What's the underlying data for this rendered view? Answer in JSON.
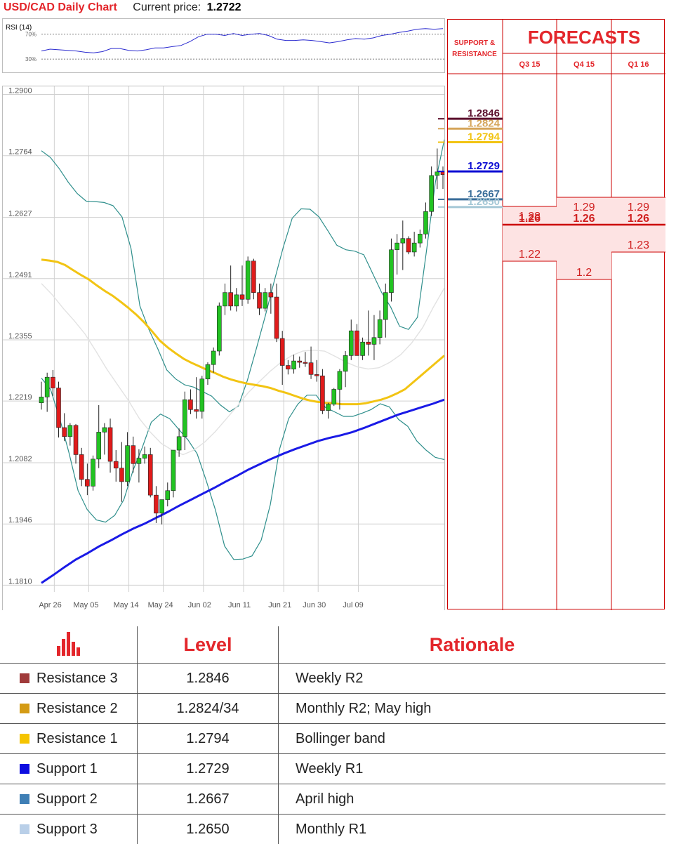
{
  "header": {
    "pair": "USD/CAD Daily Chart",
    "current_label": "Current price:",
    "current_value": "1.2722"
  },
  "rsi": {
    "title": "RSI (14)",
    "levels": [
      "70%",
      "30%"
    ],
    "values": [
      43,
      46,
      45,
      44,
      43,
      41,
      40,
      42,
      47,
      47,
      44,
      43,
      45,
      48,
      48,
      50,
      52,
      58,
      66,
      70,
      70,
      68,
      71,
      68,
      70,
      71,
      68,
      62,
      60,
      60,
      61,
      60,
      58,
      56,
      58,
      61,
      63,
      62,
      64,
      68,
      70,
      73,
      75,
      78,
      79,
      78,
      79
    ]
  },
  "chart_data": [
    {
      "type": "candlestick",
      "title": "USD/CAD Daily Chart",
      "y_ticks": [
        "1.2900",
        "1.2764",
        "1.2627",
        "1.2491",
        "1.2355",
        "1.2219",
        "1.2082",
        "1.1946",
        "1.1810"
      ],
      "ylim": [
        1.1795,
        1.2918
      ],
      "x_ticks": [
        {
          "label": "Apr 26",
          "index": 2
        },
        {
          "label": "May 05",
          "index": 8
        },
        {
          "label": "May 14",
          "index": 15
        },
        {
          "label": "May 24",
          "index": 21
        },
        {
          "label": "Jun 02",
          "index": 28
        },
        {
          "label": "Jun 11",
          "index": 35
        },
        {
          "label": "Jun 21",
          "index": 42
        },
        {
          "label": "Jun 30",
          "index": 48
        },
        {
          "label": "Jul 09",
          "index": 55
        }
      ],
      "ohlc": [
        [
          1.2215,
          1.2262,
          1.22,
          1.2228
        ],
        [
          1.2228,
          1.2282,
          1.2195,
          1.2272
        ],
        [
          1.2272,
          1.2288,
          1.223,
          1.2248
        ],
        [
          1.2248,
          1.2262,
          1.2138,
          1.216
        ],
        [
          1.216,
          1.2192,
          1.213,
          1.214
        ],
        [
          1.214,
          1.217,
          1.212,
          1.2165
        ],
        [
          1.2165,
          1.2168,
          1.208,
          1.21
        ],
        [
          1.21,
          1.2115,
          1.203,
          1.2045
        ],
        [
          1.2045,
          1.208,
          1.201,
          1.203
        ],
        [
          1.203,
          1.2098,
          1.202,
          1.209
        ],
        [
          1.209,
          1.221,
          1.207,
          1.215
        ],
        [
          1.215,
          1.217,
          1.21,
          1.216
        ],
        [
          1.216,
          1.218,
          1.206,
          1.2085
        ],
        [
          1.2085,
          1.211,
          1.204,
          1.207
        ],
        [
          1.207,
          1.2128,
          1.1995,
          1.204
        ],
        [
          1.204,
          1.215,
          1.203,
          1.212
        ],
        [
          1.212,
          1.214,
          1.206,
          1.208
        ],
        [
          1.208,
          1.2112,
          1.2038,
          1.2092
        ],
        [
          1.2092,
          1.2118,
          1.208,
          1.21
        ],
        [
          1.21,
          1.2115,
          1.2005,
          1.201
        ],
        [
          1.201,
          1.203,
          1.1948,
          1.197
        ],
        [
          1.197,
          1.2,
          1.1945,
          1.2
        ],
        [
          1.2,
          1.2038,
          1.1985,
          1.202
        ],
        [
          1.202,
          1.211,
          1.2005,
          1.211
        ],
        [
          1.211,
          1.2158,
          1.2095,
          1.214
        ],
        [
          1.214,
          1.224,
          1.211,
          1.2222
        ],
        [
          1.2222,
          1.2245,
          1.219,
          1.22
        ],
        [
          1.22,
          1.2272,
          1.218,
          1.2196
        ],
        [
          1.2196,
          1.2275,
          1.218,
          1.2268
        ],
        [
          1.2268,
          1.2305,
          1.2255,
          1.23
        ],
        [
          1.23,
          1.2338,
          1.2282,
          1.233
        ],
        [
          1.233,
          1.2438,
          1.232,
          1.243
        ],
        [
          1.243,
          1.248,
          1.241,
          1.246
        ],
        [
          1.246,
          1.252,
          1.242,
          1.243
        ],
        [
          1.243,
          1.247,
          1.2418,
          1.2455
        ],
        [
          1.2455,
          1.252,
          1.243,
          1.2445
        ],
        [
          1.2445,
          1.254,
          1.2435,
          1.253
        ],
        [
          1.253,
          1.2535,
          1.2445,
          1.246
        ],
        [
          1.246,
          1.248,
          1.241,
          1.2425
        ],
        [
          1.2425,
          1.247,
          1.2418,
          1.246
        ],
        [
          1.246,
          1.248,
          1.2413,
          1.245
        ],
        [
          1.245,
          1.248,
          1.235,
          1.2358
        ],
        [
          1.2358,
          1.2375,
          1.2255,
          1.2298
        ],
        [
          1.2298,
          1.231,
          1.2278,
          1.229
        ],
        [
          1.229,
          1.2322,
          1.228,
          1.2308
        ],
        [
          1.2308,
          1.2318,
          1.2293,
          1.2305
        ],
        [
          1.2305,
          1.2328,
          1.2295,
          1.2304
        ],
        [
          1.2304,
          1.234,
          1.2268,
          1.2278
        ],
        [
          1.2278,
          1.231,
          1.2262,
          1.2275
        ],
        [
          1.2275,
          1.229,
          1.219,
          1.2198
        ],
        [
          1.2198,
          1.2215,
          1.218,
          1.2212
        ],
        [
          1.2212,
          1.2248,
          1.2208,
          1.2245
        ],
        [
          1.2245,
          1.229,
          1.22,
          1.2285
        ],
        [
          1.2285,
          1.233,
          1.225,
          1.232
        ],
        [
          1.232,
          1.24,
          1.231,
          1.2375
        ],
        [
          1.2375,
          1.239,
          1.233,
          1.232
        ],
        [
          1.232,
          1.236,
          1.231,
          1.235
        ],
        [
          1.235,
          1.242,
          1.232,
          1.2345
        ],
        [
          1.2345,
          1.241,
          1.231,
          1.236
        ],
        [
          1.236,
          1.242,
          1.2345,
          1.24
        ],
        [
          1.24,
          1.248,
          1.236,
          1.246
        ],
        [
          1.246,
          1.258,
          1.244,
          1.2555
        ],
        [
          1.2555,
          1.259,
          1.25,
          1.257
        ],
        [
          1.257,
          1.262,
          1.251,
          1.258
        ],
        [
          1.258,
          1.2585,
          1.2545,
          1.255
        ],
        [
          1.255,
          1.2595,
          1.254,
          1.257
        ],
        [
          1.257,
          1.26,
          1.256,
          1.259
        ],
        [
          1.259,
          1.266,
          1.258,
          1.264
        ],
        [
          1.264,
          1.274,
          1.263,
          1.272
        ],
        [
          1.272,
          1.278,
          1.269,
          1.2728
        ],
        [
          1.2728,
          1.274,
          1.269,
          1.2722
        ]
      ],
      "ma_yellow": [
        1.2533,
        1.2531,
        1.2528,
        1.2521,
        1.251,
        1.2499,
        1.2489,
        1.2476,
        1.2464,
        1.2453,
        1.244,
        1.2426,
        1.2411,
        1.2394,
        1.2374,
        1.2353,
        1.2338,
        1.2325,
        1.2313,
        1.2304,
        1.2296,
        1.2288,
        1.2281,
        1.2273,
        1.2267,
        1.2262,
        1.2258,
        1.2255,
        1.2252,
        1.2248,
        1.2242,
        1.2237,
        1.2231,
        1.2225,
        1.222,
        1.2217,
        1.2215,
        1.2214,
        1.2212,
        1.2212,
        1.2212,
        1.2214,
        1.2218,
        1.2222,
        1.2228,
        1.2236,
        1.2245,
        1.226,
        1.2275,
        1.229,
        1.2305,
        1.232
      ],
      "ma_blue": [
        1.1815,
        1.1832,
        1.185,
        1.1867,
        1.1881,
        1.1896,
        1.1909,
        1.1923,
        1.1936,
        1.1947,
        1.196,
        1.1973,
        1.1987,
        1.2,
        1.2013,
        1.2026,
        1.204,
        1.2053,
        1.2067,
        1.2079,
        1.2091,
        1.2102,
        1.2112,
        1.2121,
        1.213,
        1.2137,
        1.2143,
        1.215,
        1.2159,
        1.2169,
        1.2179,
        1.2189,
        1.2197,
        1.2205,
        1.2213,
        1.2222
      ],
      "boll_upper": [
        1.2775,
        1.276,
        1.2735,
        1.2705,
        1.268,
        1.2663,
        1.2662,
        1.266,
        1.2653,
        1.2628,
        1.2558,
        1.243,
        1.2378,
        1.2335,
        1.2288,
        1.2268,
        1.2255,
        1.225,
        1.224,
        1.223,
        1.221,
        1.2195,
        1.2208,
        1.2265,
        1.2335,
        1.2408,
        1.2485,
        1.256,
        1.2625,
        1.2646,
        1.2645,
        1.2628,
        1.2597,
        1.2565,
        1.2555,
        1.2552,
        1.2544,
        1.2502,
        1.246,
        1.2428,
        1.2385,
        1.2378,
        1.2405,
        1.2552,
        1.2705,
        1.28
      ],
      "boll_lower": [
        1.227,
        1.2245,
        1.218,
        1.2105,
        1.202,
        1.1978,
        1.1955,
        1.195,
        1.1965,
        1.2,
        1.2065,
        1.2115,
        1.2172,
        1.219,
        1.218,
        1.2156,
        1.2133,
        1.2102,
        1.2042,
        1.1977,
        1.1897,
        1.1867,
        1.1868,
        1.1875,
        1.191,
        1.1989,
        1.2112,
        1.218,
        1.2212,
        1.2232,
        1.2232,
        1.2205,
        1.2195,
        1.2185,
        1.2185,
        1.2192,
        1.22,
        1.2213,
        1.2206,
        1.2178,
        1.2163,
        1.213,
        1.211,
        1.2094,
        1.2089
      ],
      "boll_mid": [
        1.248,
        1.2455,
        1.2425,
        1.2398,
        1.2368,
        1.233,
        1.229,
        1.2255,
        1.222,
        1.218,
        1.215,
        1.2125,
        1.211,
        1.21,
        1.211,
        1.2128,
        1.2152,
        1.218,
        1.2208,
        1.2238,
        1.2262,
        1.2285,
        1.2305,
        1.232,
        1.233,
        1.2332,
        1.233,
        1.2318,
        1.2305,
        1.2295,
        1.229,
        1.2293,
        1.2305,
        1.2322,
        1.2348,
        1.2382,
        1.2428,
        1.247
      ]
    },
    {
      "type": "step",
      "title": "FORECASTS",
      "series": [
        {
          "name": "Q3 15",
          "values": [
            1.28,
            1.26,
            1.22
          ]
        },
        {
          "name": "Q4 15",
          "values": [
            1.29,
            1.26,
            1.2
          ]
        },
        {
          "name": "Q1 16",
          "values": [
            1.29,
            1.26,
            1.23
          ]
        }
      ]
    }
  ],
  "levels": [
    {
      "label": "1.2846",
      "color": "#5b0f2c",
      "price": 1.2846
    },
    {
      "label": "1.2824",
      "color": "#d5a55a",
      "price": 1.2824
    },
    {
      "label": "1.2794",
      "color": "#f2c413",
      "price": 1.2794
    },
    {
      "label": "1.2729",
      "color": "#0b0bd3",
      "price": 1.2729
    },
    {
      "label": "1.2667",
      "color": "#3a6e9a",
      "price": 1.2667
    },
    {
      "label": "1.2650",
      "color": "#a5c8d6",
      "price": 1.265
    }
  ],
  "forecasts": {
    "title": "FORECASTS",
    "sr_label_1": "SUPPORT &",
    "sr_label_2": "RESISTANCE",
    "quarters": [
      {
        "label": "Q3 15",
        "high": "1.28",
        "high_val": 1.28,
        "mid": "1.26",
        "low": "1.22",
        "low_val": 1.22
      },
      {
        "label": "Q4 15",
        "high": "1.29",
        "high_val": 1.29,
        "mid": "1.26",
        "low": "1.2",
        "low_val": 1.2
      },
      {
        "label": "Q1 16",
        "high": "1.29",
        "high_val": 1.29,
        "mid": "1.26",
        "low": "1.23",
        "low_val": 1.23
      }
    ]
  },
  "table": {
    "headers": {
      "level": "Level",
      "rationale": "Rationale"
    },
    "header_icon": "bar-chart-icon",
    "rows": [
      {
        "name": "Resistance 3",
        "level": "1.2846",
        "rationale": "Weekly R2",
        "color": "#a03b3b"
      },
      {
        "name": "Resistance 2",
        "level": "1.2824/34",
        "rationale": "Monthly R2; May high",
        "color": "#d49b14"
      },
      {
        "name": "Resistance 1",
        "level": "1.2794",
        "rationale": "Bollinger band",
        "color": "#f5c400"
      },
      {
        "name": "Support 1",
        "level": "1.2729",
        "rationale": "Weekly R1",
        "color": "#0d0de0"
      },
      {
        "name": "Support 2",
        "level": "1.2667",
        "rationale": "April high",
        "color": "#3f7fb5"
      },
      {
        "name": "Support 3",
        "level": "1.2650",
        "rationale": "Monthly R1",
        "color": "#b9cfe8"
      }
    ]
  }
}
